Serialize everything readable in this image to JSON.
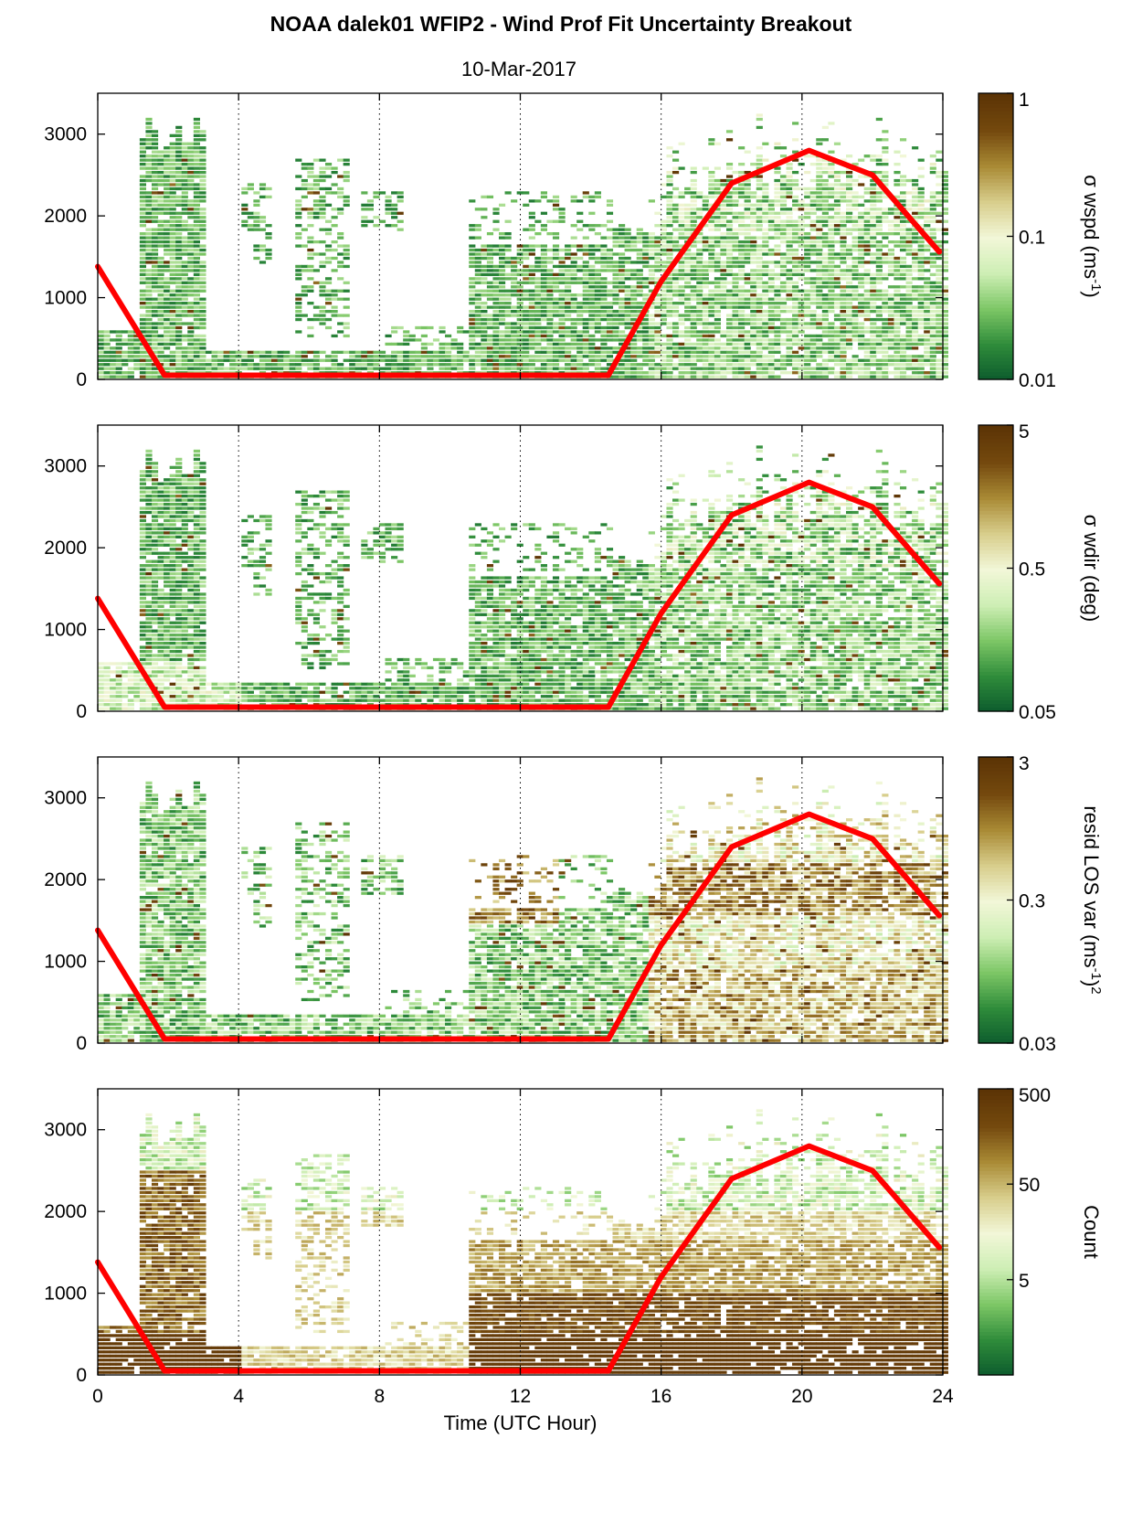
{
  "title": "NOAA dalek01 WFIP2 - Wind Prof Fit Uncertainty Breakout",
  "subtitle": "10-Mar-2017",
  "colors": {
    "sun_curve": "#ff0000",
    "colormap": [
      "#0c5a2d",
      "#2e8b3a",
      "#7cc665",
      "#cdeeb4",
      "#f2f7d8",
      "#d8ce8c",
      "#a98a35",
      "#74490e",
      "#5c3405"
    ]
  },
  "chart_data": [
    {
      "type": "heatmap",
      "name": "panel-wspd",
      "xlabel": "",
      "ylabel": "",
      "xlim": [
        0,
        24
      ],
      "ylim": [
        0,
        3500
      ],
      "xticks": [
        0,
        4,
        8,
        12,
        16,
        20,
        24
      ],
      "yticks": [
        0,
        1000,
        2000,
        3000
      ],
      "grid": "vertical dotted at 4-hour intervals",
      "colorbar": {
        "label": "σ wspd (ms",
        "label_sup": "-1",
        "label_after": ")",
        "scale": "log",
        "ticks": [
          {
            "value": "1",
            "frac": 1.0
          },
          {
            "value": "0.1",
            "frac": 0.5
          },
          {
            "value": "0.01",
            "frac": 0.0
          }
        ]
      },
      "overlay": {
        "type": "line",
        "color": "#ff0000",
        "x": [
          0,
          1.9,
          14.5,
          16,
          18,
          20.2,
          22,
          23.9
        ],
        "y": [
          1380,
          50,
          50,
          1200,
          2400,
          2800,
          2500,
          1560
        ]
      }
    },
    {
      "type": "heatmap",
      "name": "panel-wdir",
      "xlabel": "",
      "ylabel": "",
      "xlim": [
        0,
        24
      ],
      "ylim": [
        0,
        3500
      ],
      "xticks": [
        0,
        4,
        8,
        12,
        16,
        20,
        24
      ],
      "yticks": [
        0,
        1000,
        2000,
        3000
      ],
      "grid": "vertical dotted at 4-hour intervals",
      "colorbar": {
        "label": "σ wdir (deg)",
        "label_sup": "",
        "label_after": "",
        "scale": "log",
        "ticks": [
          {
            "value": "5",
            "frac": 1.0
          },
          {
            "value": "0.5",
            "frac": 0.5
          },
          {
            "value": "0.05",
            "frac": 0.0
          }
        ]
      },
      "overlay": {
        "type": "line",
        "color": "#ff0000",
        "x": [
          0,
          1.9,
          14.5,
          16,
          18,
          20.2,
          22,
          23.9
        ],
        "y": [
          1380,
          50,
          50,
          1200,
          2400,
          2800,
          2500,
          1560
        ]
      }
    },
    {
      "type": "heatmap",
      "name": "panel-resid",
      "xlabel": "",
      "ylabel": "",
      "xlim": [
        0,
        24
      ],
      "ylim": [
        0,
        3500
      ],
      "xticks": [
        0,
        4,
        8,
        12,
        16,
        20,
        24
      ],
      "yticks": [
        0,
        1000,
        2000,
        3000
      ],
      "grid": "vertical dotted at 4-hour intervals",
      "colorbar": {
        "label": "resid LOS var (ms",
        "label_sup": "-1",
        "label_after": ")",
        "label_sup2": "2",
        "scale": "log",
        "ticks": [
          {
            "value": "3",
            "frac": 1.0
          },
          {
            "value": "0.3",
            "frac": 0.5
          },
          {
            "value": "0.03",
            "frac": 0.0
          }
        ]
      },
      "overlay": {
        "type": "line",
        "color": "#ff0000",
        "x": [
          0,
          1.9,
          14.5,
          16,
          18,
          20.2,
          22,
          23.9
        ],
        "y": [
          1380,
          50,
          50,
          1200,
          2400,
          2800,
          2500,
          1560
        ]
      }
    },
    {
      "type": "heatmap",
      "name": "panel-count",
      "xlabel": "Time (UTC Hour)",
      "ylabel": "",
      "xlim": [
        0,
        24
      ],
      "ylim": [
        0,
        3500
      ],
      "xticks": [
        0,
        4,
        8,
        12,
        16,
        20,
        24
      ],
      "yticks": [
        0,
        1000,
        2000,
        3000
      ],
      "grid": "vertical dotted at 4-hour intervals",
      "colorbar": {
        "label": "Count",
        "label_sup": "",
        "label_after": "",
        "scale": "log",
        "ticks": [
          {
            "value": "500",
            "frac": 1.0
          },
          {
            "value": "50",
            "frac": 0.667
          },
          {
            "value": "5",
            "frac": 0.333
          }
        ]
      },
      "overlay": {
        "type": "line",
        "color": "#ff0000",
        "x": [
          0,
          1.9,
          14.5,
          16,
          18,
          20.2,
          22,
          23.9
        ],
        "y": [
          1380,
          50,
          50,
          1200,
          2400,
          2800,
          2500,
          1560
        ]
      }
    }
  ]
}
